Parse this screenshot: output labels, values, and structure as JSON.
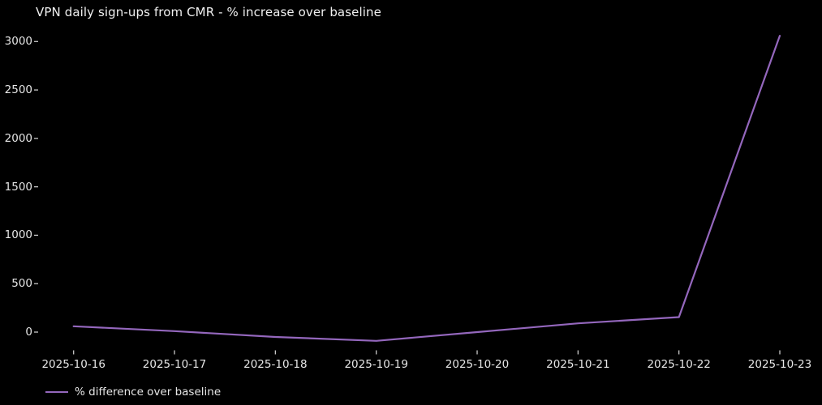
{
  "chart_data": {
    "type": "line",
    "title": "VPN daily sign-ups from CMR - % increase over baseline",
    "x": [
      "2025-10-16",
      "2025-10-17",
      "2025-10-18",
      "2025-10-19",
      "2025-10-20",
      "2025-10-21",
      "2025-10-22",
      "2025-10-23"
    ],
    "series": [
      {
        "name": "% difference over baseline",
        "color": "#9467bd",
        "values": [
          60,
          10,
          -50,
          -90,
          0,
          90,
          155,
          3060
        ]
      }
    ],
    "xlabel": "",
    "ylabel": "",
    "yticks": [
      0,
      500,
      1000,
      1500,
      2000,
      2500,
      3000
    ],
    "ylim": [
      -185,
      3180
    ],
    "grid": false,
    "legend_position": "lower-left",
    "colors": {
      "background": "#000000",
      "text": "#e6e6e6",
      "tick_mark": "#c8c8c8",
      "line": "#9467bd"
    }
  }
}
